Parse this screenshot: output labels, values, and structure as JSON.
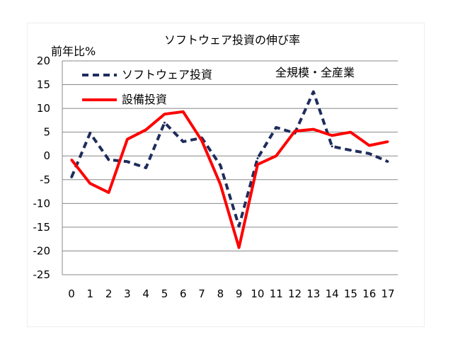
{
  "chart_data": {
    "type": "line",
    "title": "ソフトウェア投資の伸び率",
    "ylabel": "前年比%",
    "annotation": "全規模・全産業",
    "categories": [
      "0",
      "1",
      "2",
      "3",
      "4",
      "5",
      "6",
      "7",
      "8",
      "9",
      "10",
      "11",
      "12",
      "13",
      "14",
      "15",
      "16",
      "17"
    ],
    "ylim": [
      -25,
      20
    ],
    "yticks": [
      20,
      15,
      10,
      5,
      0,
      -5,
      -10,
      -15,
      -20,
      -25
    ],
    "grid": true,
    "legend_position": "top-left",
    "series": [
      {
        "name": "ソフトウェア投資",
        "color": "#1f2d5c",
        "style": "dashed",
        "values": [
          -4.5,
          4.8,
          -0.8,
          -1.2,
          -2.5,
          7.0,
          3.0,
          3.8,
          -2.0,
          -14.8,
          -0.5,
          6.0,
          4.8,
          13.5,
          2.0,
          1.2,
          0.5,
          -1.2
        ]
      },
      {
        "name": "設備投資",
        "color": "#ff0000",
        "style": "solid",
        "values": [
          -0.8,
          -5.8,
          -7.7,
          3.5,
          5.5,
          8.8,
          9.3,
          3.2,
          -6.0,
          -19.3,
          -1.8,
          0.0,
          5.2,
          5.6,
          4.3,
          5.0,
          2.2,
          3.0
        ]
      }
    ]
  }
}
